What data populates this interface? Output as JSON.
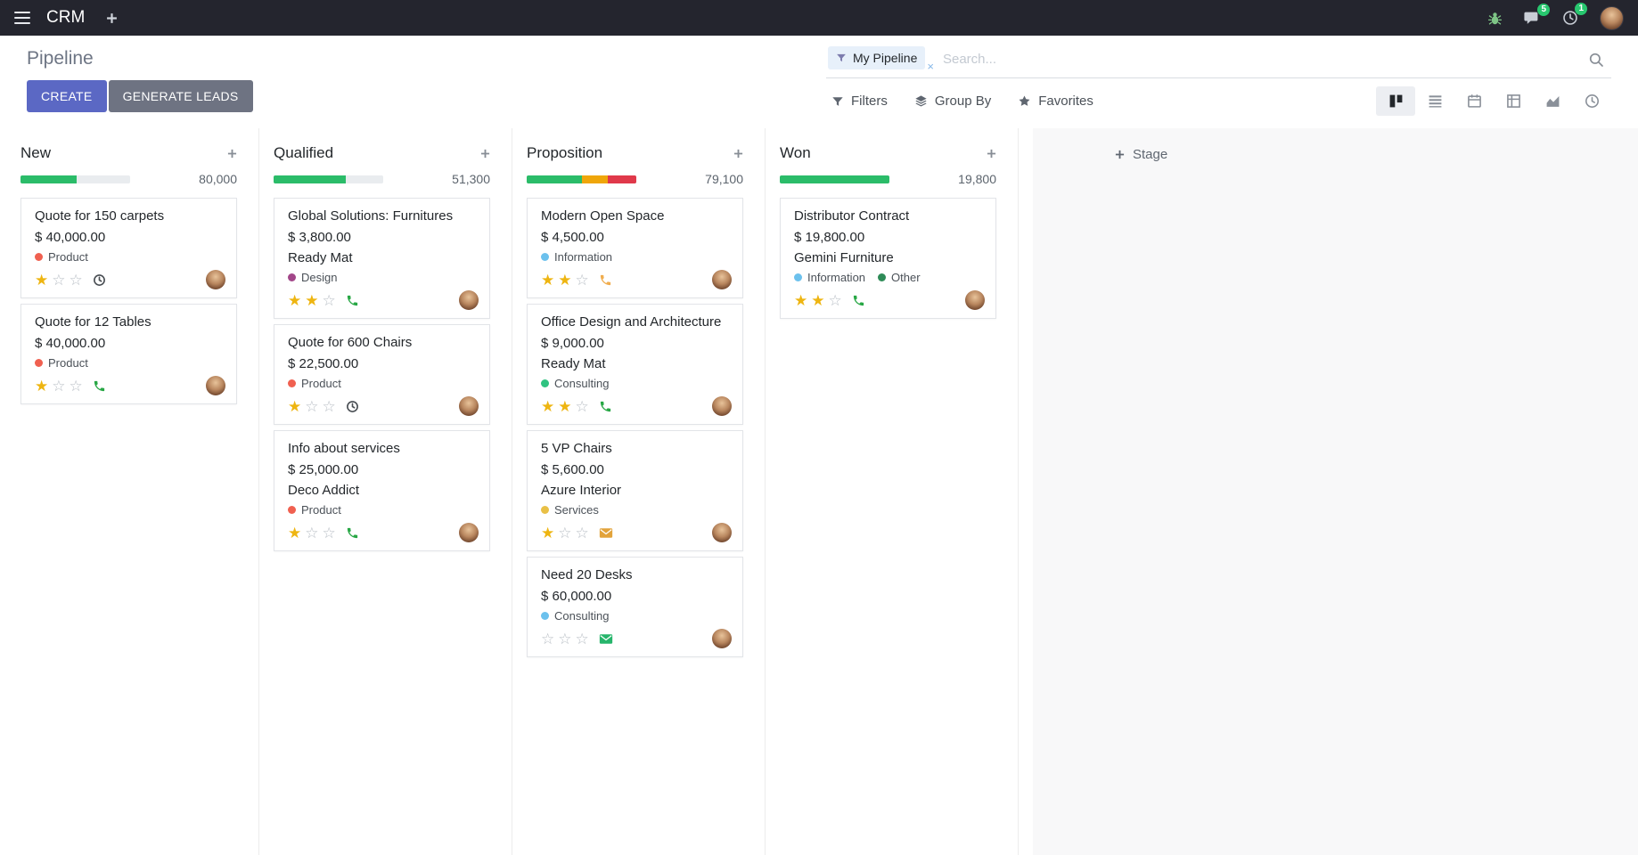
{
  "colors": {
    "navbar_bg": "#24252e",
    "primary_button": "#5b68c4",
    "secondary_button": "#6e7382",
    "progress_green": "#2bbc69",
    "progress_orange": "#efa60a",
    "progress_red": "#e0394a",
    "badge_green": "#28c76f",
    "star_filled": "#eeb511",
    "star_empty": "#b9bfc6"
  },
  "navbar": {
    "app_name": "CRM",
    "menu_icon": "hamburger-icon",
    "add_icon": "plus-icon",
    "right_icons": [
      "bug-icon",
      "messages-icon",
      "activities-icon",
      "avatar"
    ],
    "messages_badge": "5",
    "activities_badge": "1"
  },
  "control_panel": {
    "title": "Pipeline",
    "create_label": "CREATE",
    "generate_leads_label": "GENERATE LEADS",
    "search": {
      "facet_icon": "filter-facet-icon",
      "facet_label": "My Pipeline",
      "facet_remove": "×",
      "placeholder": "Search...",
      "search_icon": "search-icon"
    },
    "filter_buttons": [
      {
        "label": "Filters",
        "icon": "filter-icon"
      },
      {
        "label": "Group By",
        "icon": "layers-icon"
      },
      {
        "label": "Favorites",
        "icon": "star-icon"
      }
    ],
    "view_switcher": [
      {
        "name": "kanban",
        "icon": "kanban-view-icon",
        "active": true
      },
      {
        "name": "list",
        "icon": "list-view-icon",
        "active": false
      },
      {
        "name": "calendar",
        "icon": "calendar-view-icon",
        "active": false
      },
      {
        "name": "pivot",
        "icon": "pivot-view-icon",
        "active": false
      },
      {
        "name": "graph",
        "icon": "graph-view-icon",
        "active": false
      },
      {
        "name": "activity",
        "icon": "activity-view-icon",
        "active": false
      }
    ]
  },
  "board": {
    "add_stage_label": "Stage",
    "columns": [
      {
        "name": "New",
        "total": "80,000",
        "progress": {
          "segments": [
            {
              "color": "#2bbc69",
              "pct": 51
            }
          ]
        },
        "cards": [
          {
            "title": "Quote for 150 carpets",
            "amount": "$ 40,000.00",
            "tags": [
              {
                "label": "Product",
                "color": "#f06050"
              }
            ],
            "stars_filled": 1,
            "stars_total": 3,
            "activity": {
              "icon": "clock-icon",
              "color": "#4a4f54"
            }
          },
          {
            "title": "Quote for 12 Tables",
            "amount": "$ 40,000.00",
            "tags": [
              {
                "label": "Product",
                "color": "#f06050"
              }
            ],
            "stars_filled": 1,
            "stars_total": 3,
            "activity": {
              "icon": "phone-icon",
              "color": "#28a745"
            }
          }
        ]
      },
      {
        "name": "Qualified",
        "total": "51,300",
        "progress": {
          "segments": [
            {
              "color": "#2bbc69",
              "pct": 66
            }
          ]
        },
        "cards": [
          {
            "title": "Global Solutions: Furnitures",
            "amount": "$ 3,800.00",
            "partner": "Ready Mat",
            "tags": [
              {
                "label": "Design",
                "color": "#a24689"
              }
            ],
            "stars_filled": 2,
            "stars_total": 3,
            "activity": {
              "icon": "phone-icon",
              "color": "#28a745"
            }
          },
          {
            "title": "Quote for 600 Chairs",
            "amount": "$ 22,500.00",
            "tags": [
              {
                "label": "Product",
                "color": "#f06050"
              }
            ],
            "stars_filled": 1,
            "stars_total": 3,
            "activity": {
              "icon": "clock-icon",
              "color": "#4a4f54"
            }
          },
          {
            "title": "Info about services",
            "amount": "$ 25,000.00",
            "partner": "Deco Addict",
            "tags": [
              {
                "label": "Product",
                "color": "#f06050"
              }
            ],
            "stars_filled": 1,
            "stars_total": 3,
            "activity": {
              "icon": "phone-icon",
              "color": "#28a745"
            }
          }
        ]
      },
      {
        "name": "Proposition",
        "total": "79,100",
        "progress": {
          "segments": [
            {
              "color": "#2bbc69",
              "pct": 50
            },
            {
              "color": "#efa60a",
              "pct": 24
            },
            {
              "color": "#e0394a",
              "pct": 26
            }
          ]
        },
        "cards": [
          {
            "title": "Modern Open Space",
            "amount": "$ 4,500.00",
            "tags": [
              {
                "label": "Information",
                "color": "#6cc1ed"
              }
            ],
            "stars_filled": 2,
            "stars_total": 3,
            "activity": {
              "icon": "phone-icon",
              "color": "#f0ad4e"
            }
          },
          {
            "title": "Office Design and Architecture",
            "amount": "$ 9,000.00",
            "partner": "Ready Mat",
            "tags": [
              {
                "label": "Consulting",
                "color": "#30c381"
              }
            ],
            "stars_filled": 2,
            "stars_total": 3,
            "activity": {
              "icon": "phone-icon",
              "color": "#28a745"
            }
          },
          {
            "title": "5 VP Chairs",
            "amount": "$ 5,600.00",
            "partner": "Azure Interior",
            "tags": [
              {
                "label": "Services",
                "color": "#e9c046"
              }
            ],
            "stars_filled": 1,
            "stars_total": 3,
            "activity": {
              "icon": "envelope-icon",
              "color": "#e2a33b"
            }
          },
          {
            "title": "Need 20 Desks",
            "amount": "$ 60,000.00",
            "tags": [
              {
                "label": "Consulting",
                "color": "#6cc1ed"
              }
            ],
            "stars_filled": 0,
            "stars_total": 3,
            "activity": {
              "icon": "envelope-icon",
              "color": "#26b56b"
            }
          }
        ]
      },
      {
        "name": "Won",
        "total": "19,800",
        "progress": {
          "segments": [
            {
              "color": "#2bbc69",
              "pct": 100
            }
          ]
        },
        "cards": [
          {
            "title": "Distributor Contract",
            "amount": "$ 19,800.00",
            "partner": "Gemini Furniture",
            "tags": [
              {
                "label": "Information",
                "color": "#6cc1ed"
              },
              {
                "label": "Other",
                "color": "#2e8b57"
              }
            ],
            "stars_filled": 2,
            "stars_total": 3,
            "activity": {
              "icon": "phone-icon",
              "color": "#28a745"
            }
          }
        ]
      }
    ]
  }
}
